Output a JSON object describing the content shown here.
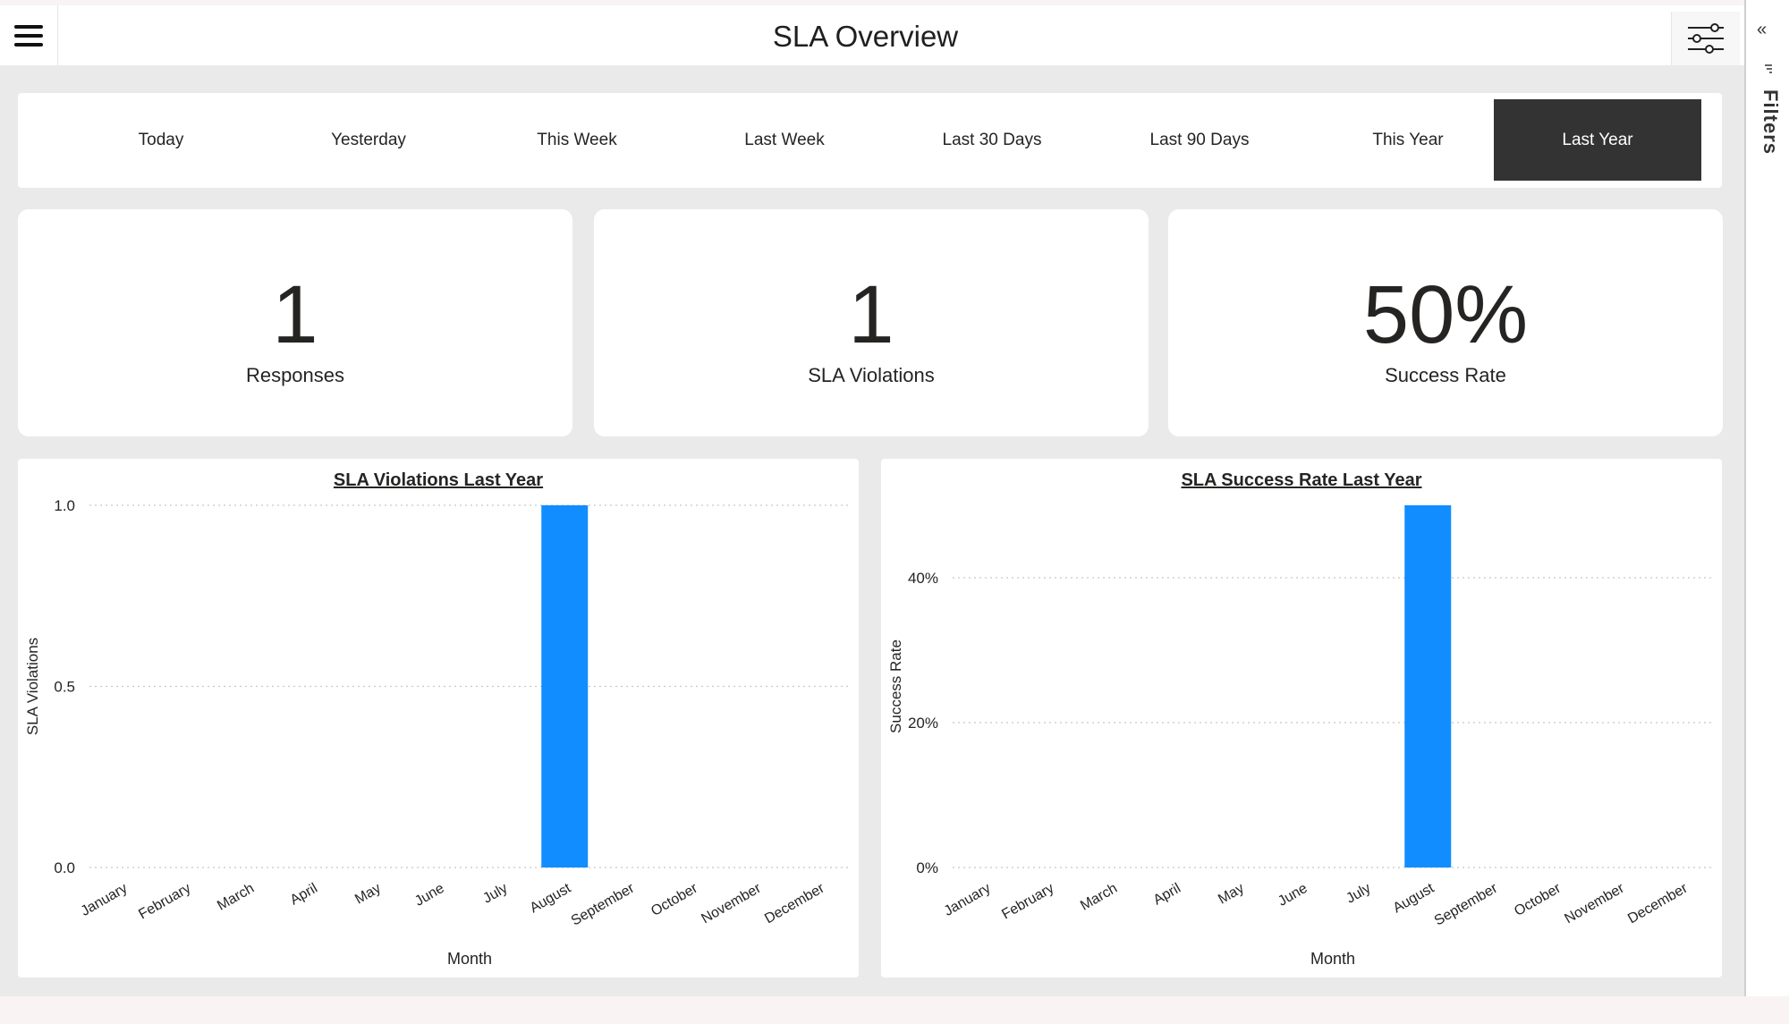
{
  "header": {
    "title": "SLA Overview",
    "menu_icon": "hamburger-icon",
    "filter_icon": "sliders-icon"
  },
  "date_ranges": [
    "Today",
    "Yesterday",
    "This Week",
    "Last Week",
    "Last 30 Days",
    "Last 90 Days",
    "This Year",
    "Last Year"
  ],
  "active_range": "Last Year",
  "kpis": [
    {
      "value": "1",
      "label": "Responses"
    },
    {
      "value": "1",
      "label": "SLA Violations"
    },
    {
      "value": "50%",
      "label": "Success Rate"
    }
  ],
  "side_panel": {
    "label": "Filters",
    "collapse_glyph": "«"
  },
  "colors": {
    "bar": "#118dff",
    "active_range_bg": "#333333",
    "panel_bg": "#ffffff",
    "canvas_bg": "#eaeaea"
  },
  "chart_data": [
    {
      "type": "bar",
      "title": "SLA Violations Last Year",
      "xlabel": "Month",
      "ylabel": "SLA Violations",
      "categories": [
        "January",
        "February",
        "March",
        "April",
        "May",
        "June",
        "July",
        "August",
        "September",
        "October",
        "November",
        "December"
      ],
      "values": [
        0,
        0,
        0,
        0,
        0,
        0,
        0,
        1,
        0,
        0,
        0,
        0
      ],
      "ylim": [
        0,
        1.0
      ],
      "yticks": [
        "0.0",
        "0.5",
        "1.0"
      ],
      "grid": true
    },
    {
      "type": "bar",
      "title": "SLA Success Rate Last Year",
      "xlabel": "Month",
      "ylabel": "Success Rate",
      "categories": [
        "January",
        "February",
        "March",
        "April",
        "May",
        "June",
        "July",
        "August",
        "September",
        "October",
        "November",
        "December"
      ],
      "values": [
        0,
        0,
        0,
        0,
        0,
        0,
        0,
        50,
        0,
        0,
        0,
        0
      ],
      "ylim": [
        0,
        50
      ],
      "yticks": [
        "0%",
        "20%",
        "40%"
      ],
      "grid": true
    }
  ]
}
